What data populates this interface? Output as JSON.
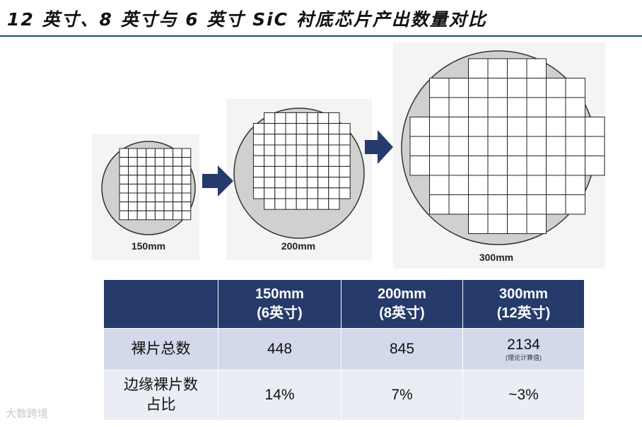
{
  "title": "12 英寸、8 英寸与 6 英寸 SiC 衬底芯片产出数量对比",
  "wafers": [
    {
      "label": "150mm"
    },
    {
      "label": "200mm"
    },
    {
      "label": "300mm"
    }
  ],
  "table": {
    "header": {
      "col1_line1": "150mm",
      "col1_line2": "(6英寸)",
      "col2_line1": "200mm",
      "col2_line2": "(8英寸)",
      "col3_line1": "300mm",
      "col3_line2": "(12英寸)"
    },
    "rows": [
      {
        "label_line1": "裸片总数",
        "label_line2": "",
        "v1": "448",
        "v2": "845",
        "v3": "2134",
        "v3_note": "(理论计算值)"
      },
      {
        "label_line1": "边缘裸片数",
        "label_line2": "占比",
        "v1": "14%",
        "v2": "7%",
        "v3": "~3%",
        "v3_note": ""
      }
    ]
  },
  "watermark": "大数跨境",
  "colors": {
    "header_bg": "#263a6b",
    "arrow": "#263a6b",
    "wafer_fill": "#d0d0d0",
    "row1_bg": "#d3d9ea",
    "row2_bg": "#eaedf4"
  }
}
